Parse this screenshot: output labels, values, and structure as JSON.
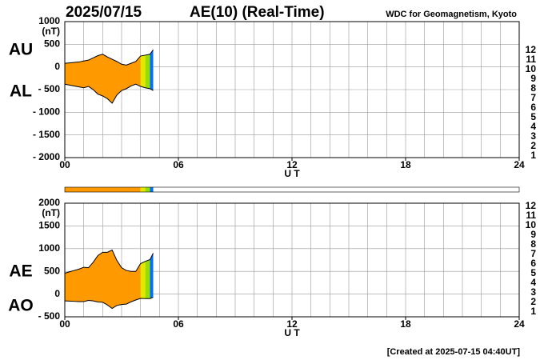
{
  "header": {
    "date": "2025/07/15",
    "title": "AE(10) (Real-Time)",
    "source": "WDC for Geomagnetism, Kyoto"
  },
  "footer": "[Created at 2025-07-15 04:40UT]",
  "chart_data": [
    {
      "type": "area",
      "x": [
        0,
        0.25,
        0.5,
        0.75,
        1,
        1.25,
        1.5,
        1.75,
        2,
        2.25,
        2.5,
        2.75,
        3,
        3.25,
        3.5,
        3.75,
        4,
        4.25,
        4.5,
        4.67
      ],
      "series": [
        {
          "name": "AU",
          "values": [
            80,
            90,
            100,
            110,
            130,
            150,
            200,
            250,
            280,
            220,
            170,
            120,
            60,
            40,
            80,
            120,
            240,
            260,
            280,
            380
          ]
        },
        {
          "name": "AL",
          "values": [
            -380,
            -400,
            -420,
            -440,
            -460,
            -430,
            -500,
            -600,
            -640,
            -700,
            -800,
            -620,
            -520,
            -480,
            -420,
            -380,
            -430,
            -460,
            -480,
            -520
          ]
        }
      ],
      "xlim": [
        0,
        24
      ],
      "xticks": [
        {
          "value": 0,
          "label": "00"
        },
        {
          "value": 6,
          "label": "06"
        },
        12,
        18,
        24
      ],
      "xgrid": [
        1,
        2,
        3,
        4,
        5,
        6,
        7,
        8,
        9,
        10,
        11,
        12,
        13,
        14,
        15,
        16,
        17,
        18,
        19,
        20,
        21,
        22,
        23
      ],
      "xlabel": "U T",
      "ylim": [
        -2000,
        1000
      ],
      "yticks": [
        1000,
        500,
        0,
        {
          "value": -500,
          "label": "- 500"
        },
        {
          "value": -1000,
          "label": "- 1000"
        },
        {
          "value": -1500,
          "label": "- 1500"
        },
        {
          "value": -2000,
          "label": "- 2000"
        }
      ],
      "yunit": "(nT)",
      "coverage": [
        {
          "start": 0,
          "end": 4.0,
          "stations": 10
        },
        {
          "start": 4.0,
          "end": 4.25,
          "stations": 9
        },
        {
          "start": 4.25,
          "end": 4.5,
          "stations": 8
        },
        {
          "start": 4.5,
          "end": 4.67,
          "stations": 6
        }
      ],
      "legend": [
        {
          "stations": 12,
          "color": "#e8176e"
        },
        {
          "stations": 11,
          "color": "#e00000"
        },
        {
          "stations": 10,
          "color": "#ff9900"
        },
        {
          "stations": 9,
          "color": "#e6e600"
        },
        {
          "stations": 8,
          "color": "#99dd00"
        },
        {
          "stations": 7,
          "color": "#00c8e0"
        },
        {
          "stations": 6,
          "color": "#0070ff"
        },
        {
          "stations": 5,
          "color": "#2020a0"
        },
        {
          "stations": 4,
          "color": "#d000d0"
        },
        {
          "stations": 3,
          "color": "#000000"
        },
        {
          "stations": 2,
          "color": "#606060"
        },
        {
          "stations": 1,
          "color": "#c0c0c0"
        }
      ]
    },
    {
      "type": "area",
      "x": [
        0,
        0.25,
        0.5,
        0.75,
        1,
        1.25,
        1.5,
        1.75,
        2,
        2.25,
        2.5,
        2.75,
        3,
        3.25,
        3.5,
        3.75,
        4,
        4.25,
        4.5,
        4.67
      ],
      "series": [
        {
          "name": "AE",
          "values": [
            460,
            490,
            520,
            550,
            590,
            580,
            700,
            850,
            920,
            920,
            970,
            740,
            580,
            520,
            500,
            500,
            670,
            720,
            760,
            900
          ]
        },
        {
          "name": "AO",
          "values": [
            -150,
            -155,
            -160,
            -165,
            -165,
            -140,
            -150,
            -175,
            -180,
            -240,
            -315,
            -250,
            -230,
            -220,
            -170,
            -130,
            -95,
            -100,
            -100,
            -70
          ]
        }
      ],
      "xlim": [
        0,
        24
      ],
      "xticks": [
        {
          "value": 0,
          "label": "00"
        },
        {
          "value": 6,
          "label": "06"
        },
        12,
        18,
        24
      ],
      "xgrid": [
        1,
        2,
        3,
        4,
        5,
        6,
        7,
        8,
        9,
        10,
        11,
        12,
        13,
        14,
        15,
        16,
        17,
        18,
        19,
        20,
        21,
        22,
        23
      ],
      "xlabel": "U T",
      "ylim": [
        -500,
        2000
      ],
      "yticks": [
        2000,
        1500,
        1000,
        500,
        0,
        {
          "value": -500,
          "label": "- 500"
        }
      ],
      "yunit": "(nT)"
    }
  ]
}
